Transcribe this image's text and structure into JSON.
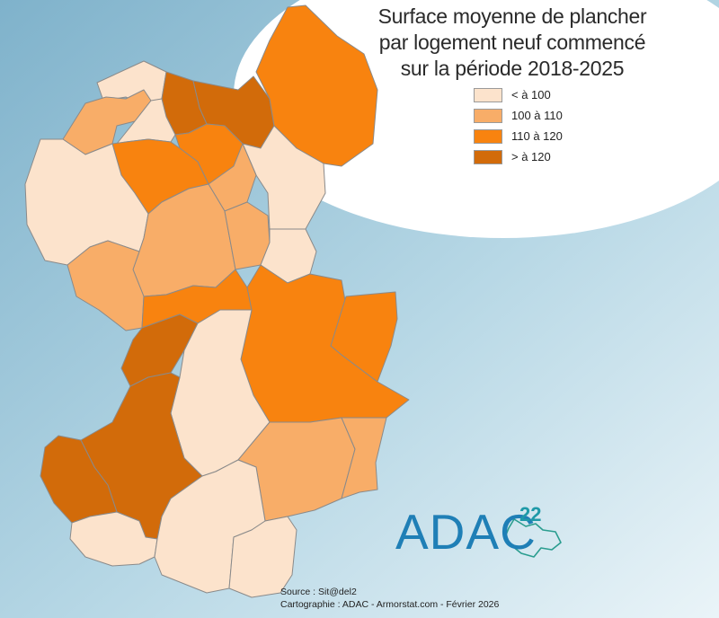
{
  "map": {
    "title_lines": [
      "Surface moyenne de plancher",
      "par logement neuf commencé",
      "sur la période 2018-2025"
    ],
    "legend": [
      {
        "label": "< à 100",
        "color": "#fce3cc"
      },
      {
        "label": "100 à 110",
        "color": "#f8ad68"
      },
      {
        "label": "110 à 120",
        "color": "#f8830f"
      },
      {
        "label": "> à 120",
        "color": "#d26b0a"
      }
    ],
    "logo": {
      "text": "ADAC",
      "superscript": "22"
    },
    "credits": {
      "source": "Source : Sit@del2",
      "cartography": "Cartographie : ADAC - Armorstat.com - Février 2026"
    },
    "colors": {
      "sea_top": "#88b8cf",
      "sea_bottom": "#e6f2f7",
      "border": "#8a8a8a",
      "logo_blue": "#1f7fb6",
      "logo_green": "#2a9d8f"
    },
    "regions": [
      {
        "name": "nw-island",
        "class": 0
      },
      {
        "name": "n-coast-left",
        "class": 1
      },
      {
        "name": "n-center-top",
        "class": 3
      },
      {
        "name": "n-center-small",
        "class": 0
      },
      {
        "name": "n-center-right",
        "class": 3
      },
      {
        "name": "ne-large",
        "class": 2
      },
      {
        "name": "n-mid",
        "class": 2
      },
      {
        "name": "nc-left",
        "class": 2
      },
      {
        "name": "w-large",
        "class": 0
      },
      {
        "name": "ne-mid",
        "class": 0
      },
      {
        "name": "c-small",
        "class": 1
      },
      {
        "name": "c-large",
        "class": 1
      },
      {
        "name": "c-right",
        "class": 1
      },
      {
        "name": "e-small",
        "class": 0
      },
      {
        "name": "w-mid",
        "class": 1
      },
      {
        "name": "c-band",
        "class": 2
      },
      {
        "name": "e-large",
        "class": 2
      },
      {
        "name": "e-right",
        "class": 2
      },
      {
        "name": "sw-upper",
        "class": 3
      },
      {
        "name": "s-center",
        "class": 0
      },
      {
        "name": "s-large",
        "class": 3
      },
      {
        "name": "sw-small",
        "class": 3
      },
      {
        "name": "se-mid",
        "class": 1
      },
      {
        "name": "se-right",
        "class": 1
      },
      {
        "name": "sw-bottom",
        "class": 0
      },
      {
        "name": "s-bottom",
        "class": 0
      },
      {
        "name": "s-bottom-right",
        "class": 0
      }
    ]
  }
}
